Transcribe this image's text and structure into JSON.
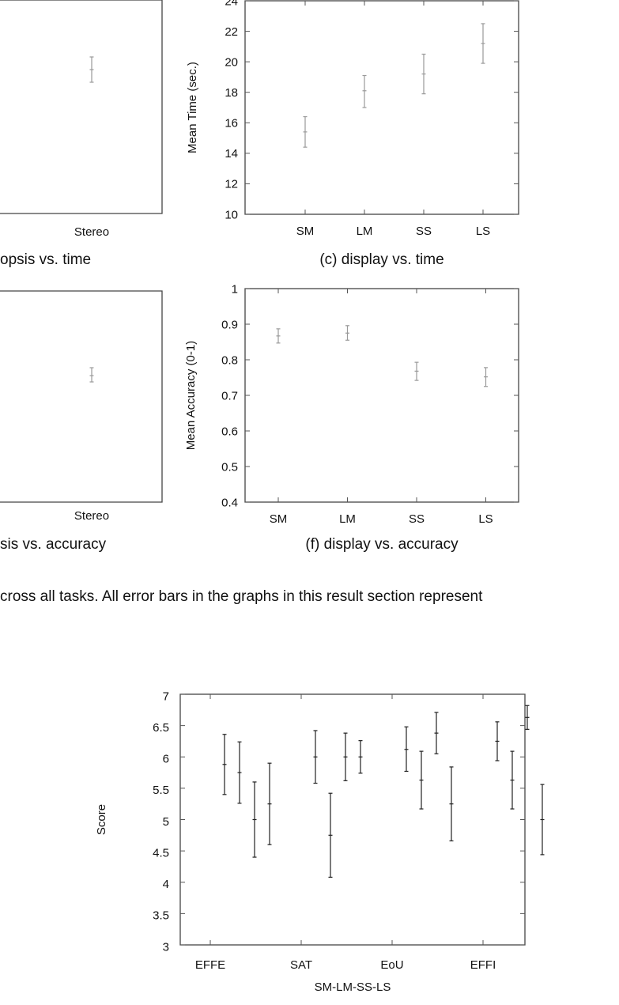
{
  "chart_data": [
    {
      "type": "scatter",
      "title": "",
      "caption": "opsis vs. time",
      "xlabel": "",
      "ylabel": "",
      "categories": [
        "Stereo"
      ],
      "series": [
        {
          "points": [
            {
              "x": "Stereo",
              "y": null,
              "yerr_px_hint": null
            }
          ]
        }
      ],
      "error_bars": true,
      "cropped": true
    },
    {
      "type": "scatter",
      "caption": "(c) display vs. time",
      "xlabel": "",
      "ylabel": "Mean Time (sec.)",
      "ylim": [
        10,
        24
      ],
      "yticks": [
        "10",
        "12",
        "14",
        "16",
        "18",
        "20",
        "22",
        "24"
      ],
      "categories": [
        "SM",
        "LM",
        "SS",
        "LS"
      ],
      "values": [
        15.4,
        18.1,
        19.2,
        21.2
      ],
      "lower": [
        14.4,
        17.0,
        17.9,
        19.9
      ],
      "upper": [
        16.4,
        19.1,
        20.5,
        22.5
      ],
      "error_bars": true
    },
    {
      "type": "scatter",
      "caption": "sis vs. accuracy",
      "xlabel": "",
      "ylabel": "",
      "categories": [
        "Stereo"
      ],
      "error_bars": true,
      "cropped": true
    },
    {
      "type": "scatter",
      "caption": "(f) display vs. accuracy",
      "xlabel": "",
      "ylabel": "Mean Accuracy (0-1)",
      "ylim": [
        0.4,
        1
      ],
      "yticks": [
        "0.4",
        "0.5",
        "0.6",
        "0.7",
        "0.8",
        "0.9",
        "1"
      ],
      "categories": [
        "SM",
        "LM",
        "SS",
        "LS"
      ],
      "values": [
        0.867,
        0.875,
        0.768,
        0.752
      ],
      "lower": [
        0.847,
        0.855,
        0.742,
        0.725
      ],
      "upper": [
        0.887,
        0.896,
        0.793,
        0.778
      ],
      "error_bars": true
    },
    {
      "type": "scatter",
      "caption": "",
      "xlabel": "SM-LM-SS-LS",
      "ylabel": "Score",
      "ylim": [
        3,
        7
      ],
      "yticks": [
        "3",
        "3.5",
        "4",
        "4.5",
        "5",
        "5.5",
        "6",
        "6.5",
        "7"
      ],
      "categories": [
        "EFFE",
        "SAT",
        "EoU",
        "EFFI"
      ],
      "series": [
        {
          "values": [
            5.88,
            6.0,
            6.12,
            6.25
          ],
          "lower": [
            5.4,
            5.58,
            5.77,
            5.94
          ],
          "upper": [
            6.36,
            6.42,
            6.48,
            6.56
          ]
        },
        {
          "values": [
            5.75,
            4.75,
            5.63,
            5.63
          ],
          "lower": [
            5.26,
            4.08,
            5.17,
            5.17
          ],
          "upper": [
            6.24,
            5.42,
            6.09,
            6.09
          ]
        },
        {
          "values": [
            5.0,
            6.0,
            6.38,
            6.63
          ],
          "lower": [
            4.4,
            5.62,
            6.05,
            6.44
          ],
          "upper": [
            5.6,
            6.38,
            6.71,
            6.82
          ]
        },
        {
          "values": [
            5.25,
            6.0,
            5.25,
            5.0
          ],
          "lower": [
            4.6,
            5.74,
            4.66,
            4.44
          ],
          "upper": [
            5.9,
            6.26,
            5.84,
            5.56
          ]
        }
      ],
      "error_bars": true
    }
  ],
  "left_crop": {
    "time_tick": "Stereo",
    "acc_tick": "Stereo",
    "time_caption": "opsis vs. time",
    "acc_caption": "sis vs. accuracy"
  },
  "body_text": "cross all tasks.  All error bars in the graphs in this result section represent"
}
